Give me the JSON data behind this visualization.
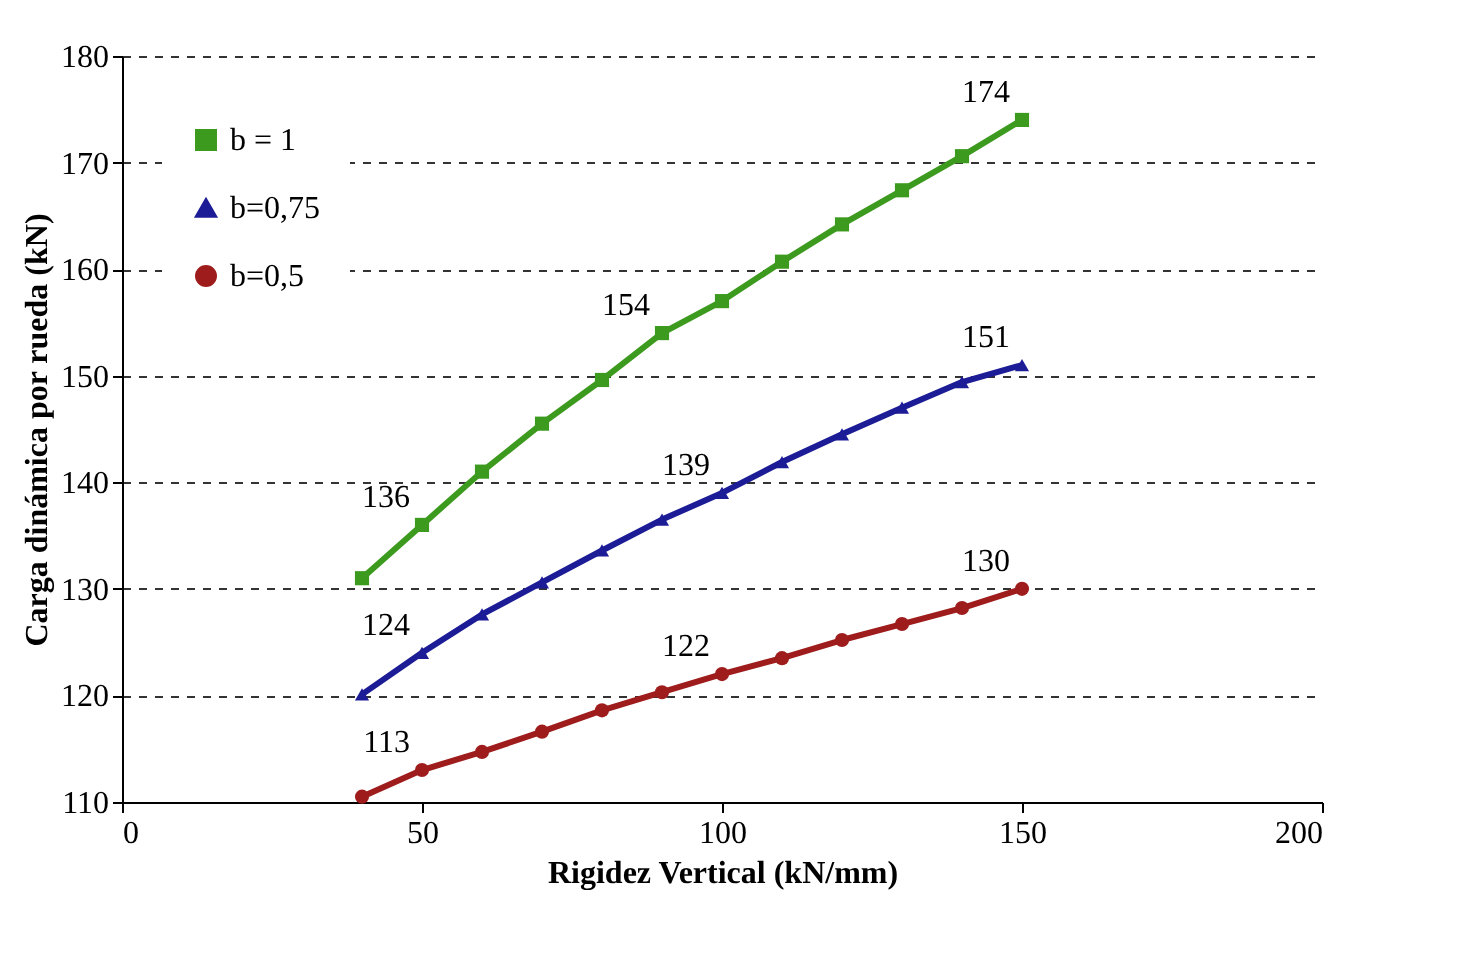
{
  "chart_data": {
    "type": "line",
    "xlabel": "Rigidez Vertical (kN/mm)",
    "ylabel": "Carga dinámica por rueda (kN)",
    "x": [
      40,
      50,
      60,
      70,
      80,
      90,
      100,
      110,
      120,
      130,
      140,
      150
    ],
    "series": [
      {
        "name": "b = 1",
        "color": "#3c9a1e",
        "marker": "square",
        "values": [
          131,
          136,
          141,
          145.5,
          149.6,
          154,
          157,
          160.7,
          164.2,
          167.4,
          170.6,
          174
        ],
        "value_labels": [
          null,
          "136",
          null,
          null,
          null,
          "154",
          null,
          null,
          null,
          null,
          null,
          "174"
        ]
      },
      {
        "name": "b=0,75",
        "color": "#1c1c96",
        "marker": "triangle",
        "values": [
          120.1,
          124,
          127.6,
          130.6,
          133.6,
          136.5,
          139,
          141.9,
          144.5,
          147,
          149.4,
          151
        ],
        "value_labels": [
          null,
          "124",
          null,
          null,
          null,
          null,
          "139",
          null,
          null,
          null,
          null,
          "151"
        ]
      },
      {
        "name": "b=0,5",
        "color": "#9e1c1c",
        "marker": "circle",
        "values": [
          110.5,
          113,
          114.7,
          116.6,
          118.6,
          120.3,
          122,
          123.5,
          125.2,
          126.7,
          128.2,
          130
        ],
        "value_labels": [
          null,
          "113",
          null,
          null,
          null,
          null,
          "122",
          null,
          null,
          null,
          null,
          "130"
        ]
      }
    ],
    "xlim": [
      0,
      200
    ],
    "xticks": [
      0,
      50,
      100,
      150,
      200
    ],
    "ylim": [
      110,
      180
    ],
    "yticks": [
      110,
      120,
      130,
      140,
      150,
      160,
      170,
      180
    ],
    "grid": "y",
    "legend": "top left",
    "line_style": "solid"
  }
}
